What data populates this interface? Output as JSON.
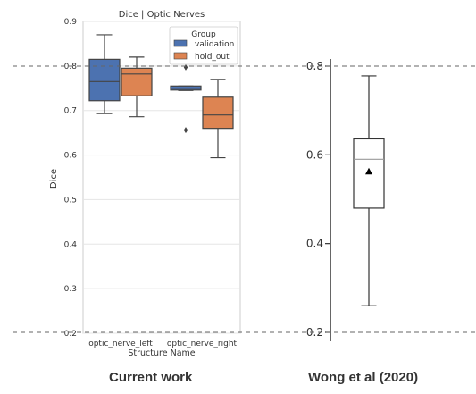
{
  "figure": {
    "captions": {
      "left": "Current work",
      "right": "Wong et al (2020)"
    }
  },
  "colors": {
    "validation": "#4c72b0",
    "hold_out": "#dd8452",
    "reference_line": "#666666"
  },
  "reference_lines": [
    0.8,
    0.2
  ],
  "chart_data": [
    {
      "type": "box",
      "title": "Dice | Optic Nerves",
      "xlabel": "Structure Name",
      "ylabel": "Dice",
      "ylim": [
        0.2,
        0.9
      ],
      "yticks": [
        "0.2",
        "0.3",
        "0.4",
        "0.5",
        "0.6",
        "0.7",
        "0.8",
        "0.9"
      ],
      "grid": "horizontal",
      "categories": [
        "optic_nerve_left",
        "optic_nerve_right"
      ],
      "legend": {
        "title": "Group",
        "position": "top-right"
      },
      "series": [
        {
          "name": "validation",
          "boxes": [
            {
              "min": 0.693,
              "q1": 0.722,
              "median": 0.765,
              "q3": 0.815,
              "max": 0.87,
              "outliers": []
            },
            {
              "min": 0.745,
              "q1": 0.746,
              "median": 0.75,
              "q3": 0.755,
              "max": 0.755,
              "outliers": [
                0.656,
                0.797
              ]
            }
          ]
        },
        {
          "name": "hold_out",
          "boxes": [
            {
              "min": 0.686,
              "q1": 0.733,
              "median": 0.782,
              "q3": 0.795,
              "max": 0.82,
              "outliers": []
            },
            {
              "min": 0.594,
              "q1": 0.66,
              "median": 0.69,
              "q3": 0.73,
              "max": 0.77,
              "outliers": []
            }
          ]
        }
      ]
    },
    {
      "type": "box",
      "title": "",
      "xlabel": "",
      "ylabel": "",
      "ylim": [
        0.2,
        0.8
      ],
      "yticks": [
        "0.2",
        "0.4",
        "0.6",
        "0.8"
      ],
      "grid": "none",
      "boxes": [
        {
          "min": 0.26,
          "q1": 0.48,
          "median": 0.59,
          "q3": 0.636,
          "max": 0.778,
          "mean": 0.562
        }
      ]
    }
  ]
}
